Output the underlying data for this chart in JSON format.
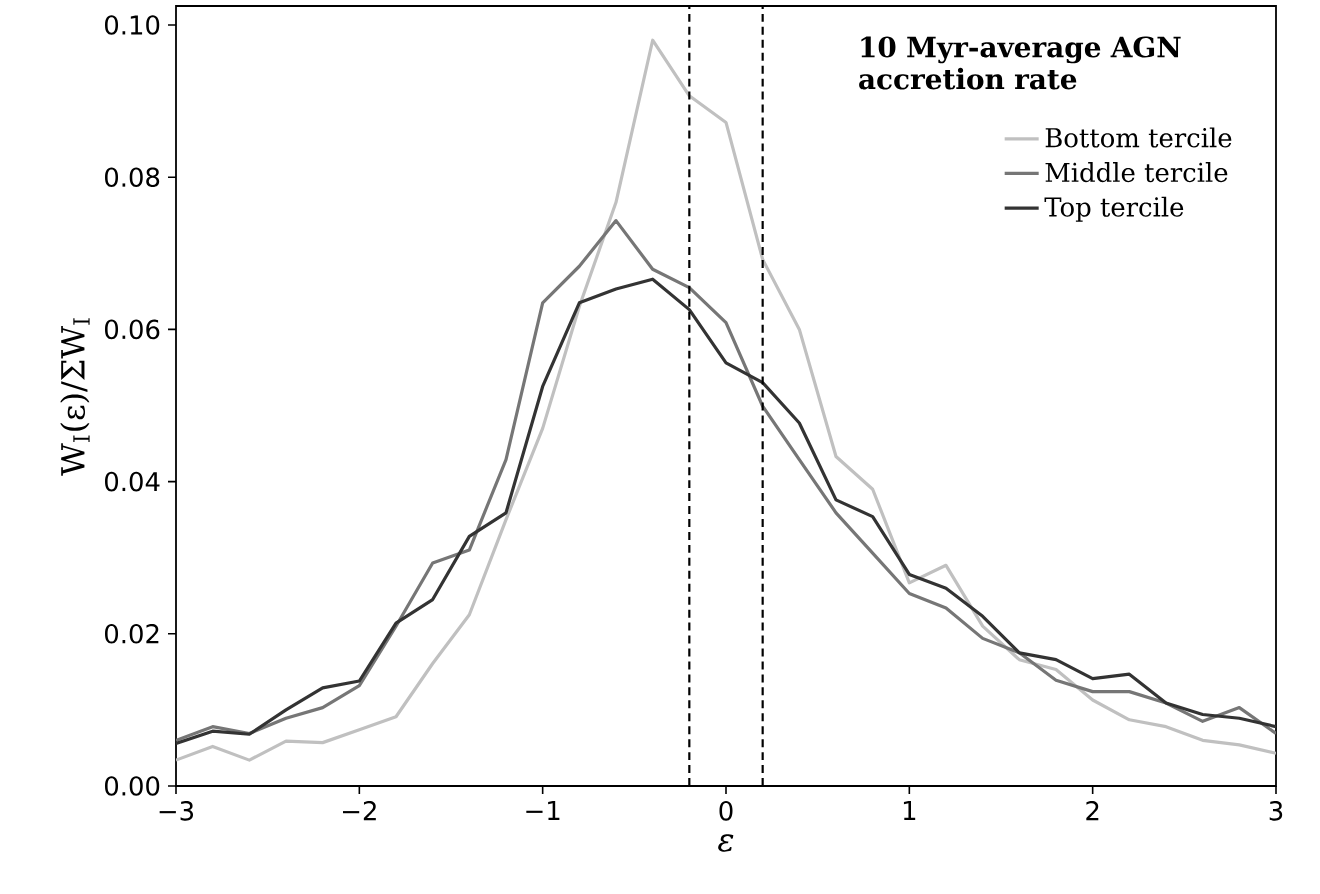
{
  "chart_data": {
    "type": "line",
    "xlabel": "ε",
    "ylabel": "W$_{I}$(ε)/ΣW$_{I}$",
    "legend_title": "10 Myr-average AGN accretion rate",
    "x": [
      -3.0,
      -2.8,
      -2.6,
      -2.4,
      -2.2,
      -2.0,
      -1.8,
      -1.6,
      -1.4,
      -1.2,
      -1.0,
      -0.8,
      -0.6,
      -0.4,
      -0.2,
      0.0,
      0.2,
      0.4,
      0.6,
      0.8,
      1.0,
      1.2,
      1.4,
      1.6,
      1.8,
      2.0,
      2.2,
      2.4,
      2.6,
      2.8,
      3.0
    ],
    "series": [
      {
        "name": "Bottom tercile",
        "color": "#c0c0c0",
        "values": [
          0.0034,
          0.0052,
          0.0034,
          0.0059,
          0.0057,
          0.0074,
          0.0091,
          0.0161,
          0.0225,
          0.035,
          0.047,
          0.063,
          0.0767,
          0.098,
          0.0907,
          0.0872,
          0.0692,
          0.06,
          0.0433,
          0.039,
          0.0267,
          0.029,
          0.021,
          0.0166,
          0.0153,
          0.0113,
          0.0087,
          0.0078,
          0.006,
          0.0054,
          0.0043
        ]
      },
      {
        "name": "Middle tercile",
        "color": "#767676",
        "values": [
          0.006,
          0.0078,
          0.0069,
          0.0089,
          0.0103,
          0.0132,
          0.021,
          0.0293,
          0.031,
          0.0429,
          0.0635,
          0.0683,
          0.0743,
          0.0679,
          0.0655,
          0.0609,
          0.0499,
          0.0429,
          0.0359,
          0.0306,
          0.0253,
          0.0234,
          0.0194,
          0.0175,
          0.0139,
          0.0124,
          0.0124,
          0.0109,
          0.0085,
          0.0103,
          0.0069
        ]
      },
      {
        "name": "Top tercile",
        "color": "#333333",
        "values": [
          0.0056,
          0.0072,
          0.0068,
          0.01,
          0.0129,
          0.0138,
          0.0214,
          0.0245,
          0.0328,
          0.0359,
          0.0525,
          0.0635,
          0.0653,
          0.0666,
          0.0626,
          0.0556,
          0.053,
          0.0477,
          0.0376,
          0.0354,
          0.0278,
          0.026,
          0.0223,
          0.0175,
          0.0166,
          0.0141,
          0.0147,
          0.0109,
          0.0094,
          0.0089,
          0.0078
        ]
      }
    ],
    "xlim": [
      -3,
      3
    ],
    "ylim": [
      0,
      0.1025
    ],
    "xticks": [
      {
        "value": -3,
        "label": "−3"
      },
      {
        "value": -2,
        "label": "−2"
      },
      {
        "value": -1,
        "label": "−1"
      },
      0,
      1,
      2,
      3
    ],
    "yticks": [
      {
        "value": 0,
        "label": "0.00"
      },
      {
        "value": 0.02,
        "label": "0.02"
      },
      {
        "value": 0.04,
        "label": "0.04"
      },
      {
        "value": 0.06,
        "label": "0.06"
      },
      {
        "value": 0.08,
        "label": "0.08"
      },
      {
        "value": 0.1,
        "label": "0.10"
      }
    ],
    "ref_lines": [
      {
        "axis": "x",
        "value": -0.2,
        "color": "#000000",
        "line_style": "dashed"
      },
      {
        "axis": "x",
        "value": 0.2,
        "color": "#000000",
        "line_style": "dashed"
      }
    ],
    "legend": "top right",
    "grid": false,
    "marker": "none",
    "line_style": "solid"
  }
}
